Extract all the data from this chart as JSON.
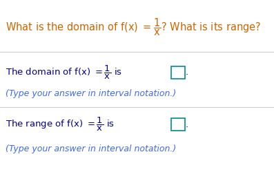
{
  "bg_color": "#ffffff",
  "separator_color": "#cccccc",
  "title_color": "#cc6600",
  "body_color": "#00008b",
  "hint_color": "#4169e1",
  "box_color": "#008b8b",
  "title_text": "What is the domain of f(x) $= \\dfrac{1}{x}$? What is its range?",
  "domain_text": "The domain of f(x) $= \\dfrac{1}{x}$ is",
  "range_text": "The range of f(x) $= \\dfrac{1}{x}$ is",
  "hint_text": "(Type your answer in interval notation.)",
  "title_fontsize": 10.5,
  "body_fontsize": 9.5,
  "hint_fontsize": 9.0
}
